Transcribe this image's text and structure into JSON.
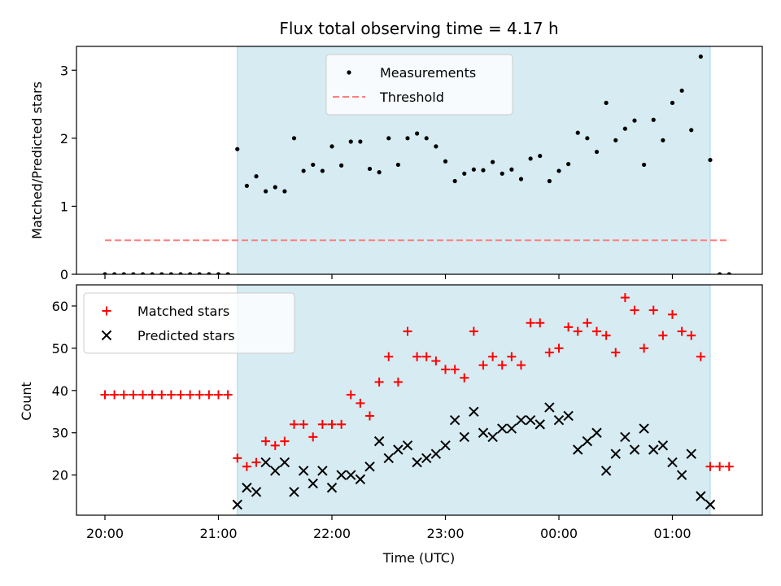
{
  "chart_data": {
    "type": "scatter",
    "title": "Flux total observing time = 4.17 h",
    "xlabel": "Time (UTC)",
    "x_ticks": [
      "20:00",
      "21:00",
      "22:00",
      "23:00",
      "00:00",
      "01:00"
    ],
    "shaded_range": [
      "21:10",
      "01:20"
    ],
    "shade_color": "#add8e6",
    "panels": [
      {
        "name": "ratio-panel",
        "ylabel": "Matched/Predicted stars",
        "ylim": [
          0,
          3.35
        ],
        "y_ticks": [
          0,
          1,
          2,
          3
        ],
        "legend_position": "upper center",
        "series": [
          {
            "name": "Measurements",
            "kind": "points",
            "color": "#000000",
            "x": [
              "20:00",
              "20:05",
              "20:10",
              "20:15",
              "20:20",
              "20:25",
              "20:30",
              "20:35",
              "20:40",
              "20:45",
              "20:50",
              "20:55",
              "21:00",
              "21:05",
              "21:10",
              "21:15",
              "21:20",
              "21:25",
              "21:30",
              "21:35",
              "21:40",
              "21:45",
              "21:50",
              "21:55",
              "22:00",
              "22:05",
              "22:10",
              "22:15",
              "22:20",
              "22:25",
              "22:30",
              "22:35",
              "22:40",
              "22:45",
              "22:50",
              "22:55",
              "23:00",
              "23:05",
              "23:10",
              "23:15",
              "23:20",
              "23:25",
              "23:30",
              "23:35",
              "23:40",
              "23:45",
              "23:50",
              "23:55",
              "00:00",
              "00:05",
              "00:10",
              "00:15",
              "00:20",
              "00:25",
              "00:30",
              "00:35",
              "00:40",
              "00:45",
              "00:50",
              "00:55",
              "01:00",
              "01:05",
              "01:10",
              "01:15",
              "01:20",
              "01:25",
              "01:30"
            ],
            "y": [
              0,
              0,
              0,
              0,
              0,
              0,
              0,
              0,
              0,
              0,
              0,
              0,
              0,
              0,
              1.84,
              1.3,
              1.44,
              1.22,
              1.28,
              1.22,
              2.0,
              1.52,
              1.61,
              1.52,
              1.88,
              1.6,
              1.95,
              1.95,
              1.55,
              1.5,
              2.0,
              1.61,
              2.0,
              2.07,
              2.0,
              1.88,
              1.66,
              1.37,
              1.48,
              1.54,
              1.53,
              1.65,
              1.48,
              1.54,
              1.4,
              1.7,
              1.74,
              1.37,
              1.52,
              1.62,
              2.08,
              2.0,
              1.8,
              2.52,
              1.97,
              2.14,
              2.26,
              1.61,
              2.27,
              1.97,
              2.52,
              2.7,
              2.12,
              3.2,
              1.68,
              0,
              0
            ]
          },
          {
            "name": "Threshold",
            "kind": "dashed-line",
            "color": "#ff7f7f",
            "x": [
              "20:00",
              "01:30"
            ],
            "y": [
              0.5,
              0.5
            ]
          }
        ]
      },
      {
        "name": "count-panel",
        "ylabel": "Count",
        "ylim": [
          10.5,
          65
        ],
        "y_ticks": [
          20,
          30,
          40,
          50,
          60
        ],
        "legend_position": "upper left",
        "series": [
          {
            "name": "Matched stars",
            "kind": "plus",
            "color": "#ff0000",
            "x": [
              "20:00",
              "20:05",
              "20:10",
              "20:15",
              "20:20",
              "20:25",
              "20:30",
              "20:35",
              "20:40",
              "20:45",
              "20:50",
              "20:55",
              "21:00",
              "21:05",
              "21:10",
              "21:15",
              "21:20",
              "21:25",
              "21:30",
              "21:35",
              "21:40",
              "21:45",
              "21:50",
              "21:55",
              "22:00",
              "22:05",
              "22:10",
              "22:15",
              "22:20",
              "22:25",
              "22:30",
              "22:35",
              "22:40",
              "22:45",
              "22:50",
              "22:55",
              "23:00",
              "23:05",
              "23:10",
              "23:15",
              "23:20",
              "23:25",
              "23:30",
              "23:35",
              "23:40",
              "23:45",
              "23:50",
              "23:55",
              "00:00",
              "00:05",
              "00:10",
              "00:15",
              "00:20",
              "00:25",
              "00:30",
              "00:35",
              "00:40",
              "00:45",
              "00:50",
              "00:55",
              "01:00",
              "01:05",
              "01:10",
              "01:15",
              "01:20",
              "01:25",
              "01:30"
            ],
            "y": [
              39,
              39,
              39,
              39,
              39,
              39,
              39,
              39,
              39,
              39,
              39,
              39,
              39,
              39,
              24,
              22,
              23,
              28,
              27,
              28,
              32,
              32,
              29,
              32,
              32,
              32,
              39,
              37,
              34,
              42,
              48,
              42,
              54,
              48,
              48,
              47,
              45,
              45,
              43,
              54,
              46,
              48,
              46,
              48,
              46,
              56,
              56,
              49,
              50,
              55,
              54,
              56,
              54,
              53,
              49,
              62,
              59,
              50,
              59,
              53,
              58,
              54,
              53,
              48,
              22,
              22,
              22
            ]
          },
          {
            "name": "Predicted stars",
            "kind": "x",
            "color": "#000000",
            "x": [
              "21:10",
              "21:15",
              "21:20",
              "21:25",
              "21:30",
              "21:35",
              "21:40",
              "21:45",
              "21:50",
              "21:55",
              "22:00",
              "22:05",
              "22:10",
              "22:15",
              "22:20",
              "22:25",
              "22:30",
              "22:35",
              "22:40",
              "22:45",
              "22:50",
              "22:55",
              "23:00",
              "23:05",
              "23:10",
              "23:15",
              "23:20",
              "23:25",
              "23:30",
              "23:35",
              "23:40",
              "23:45",
              "23:50",
              "23:55",
              "00:00",
              "00:05",
              "00:10",
              "00:15",
              "00:20",
              "00:25",
              "00:30",
              "00:35",
              "00:40",
              "00:45",
              "00:50",
              "00:55",
              "01:00",
              "01:05",
              "01:10",
              "01:15",
              "01:20"
            ],
            "y": [
              13,
              17,
              16,
              23,
              21,
              23,
              16,
              21,
              18,
              21,
              17,
              20,
              20,
              19,
              22,
              28,
              24,
              26,
              27,
              23,
              24,
              25,
              27,
              33,
              29,
              35,
              30,
              29,
              31,
              31,
              33,
              33,
              32,
              36,
              33,
              34,
              26,
              28,
              30,
              21,
              25,
              29,
              26,
              31,
              26,
              27,
              23,
              20,
              25,
              15,
              13
            ]
          }
        ]
      }
    ]
  }
}
